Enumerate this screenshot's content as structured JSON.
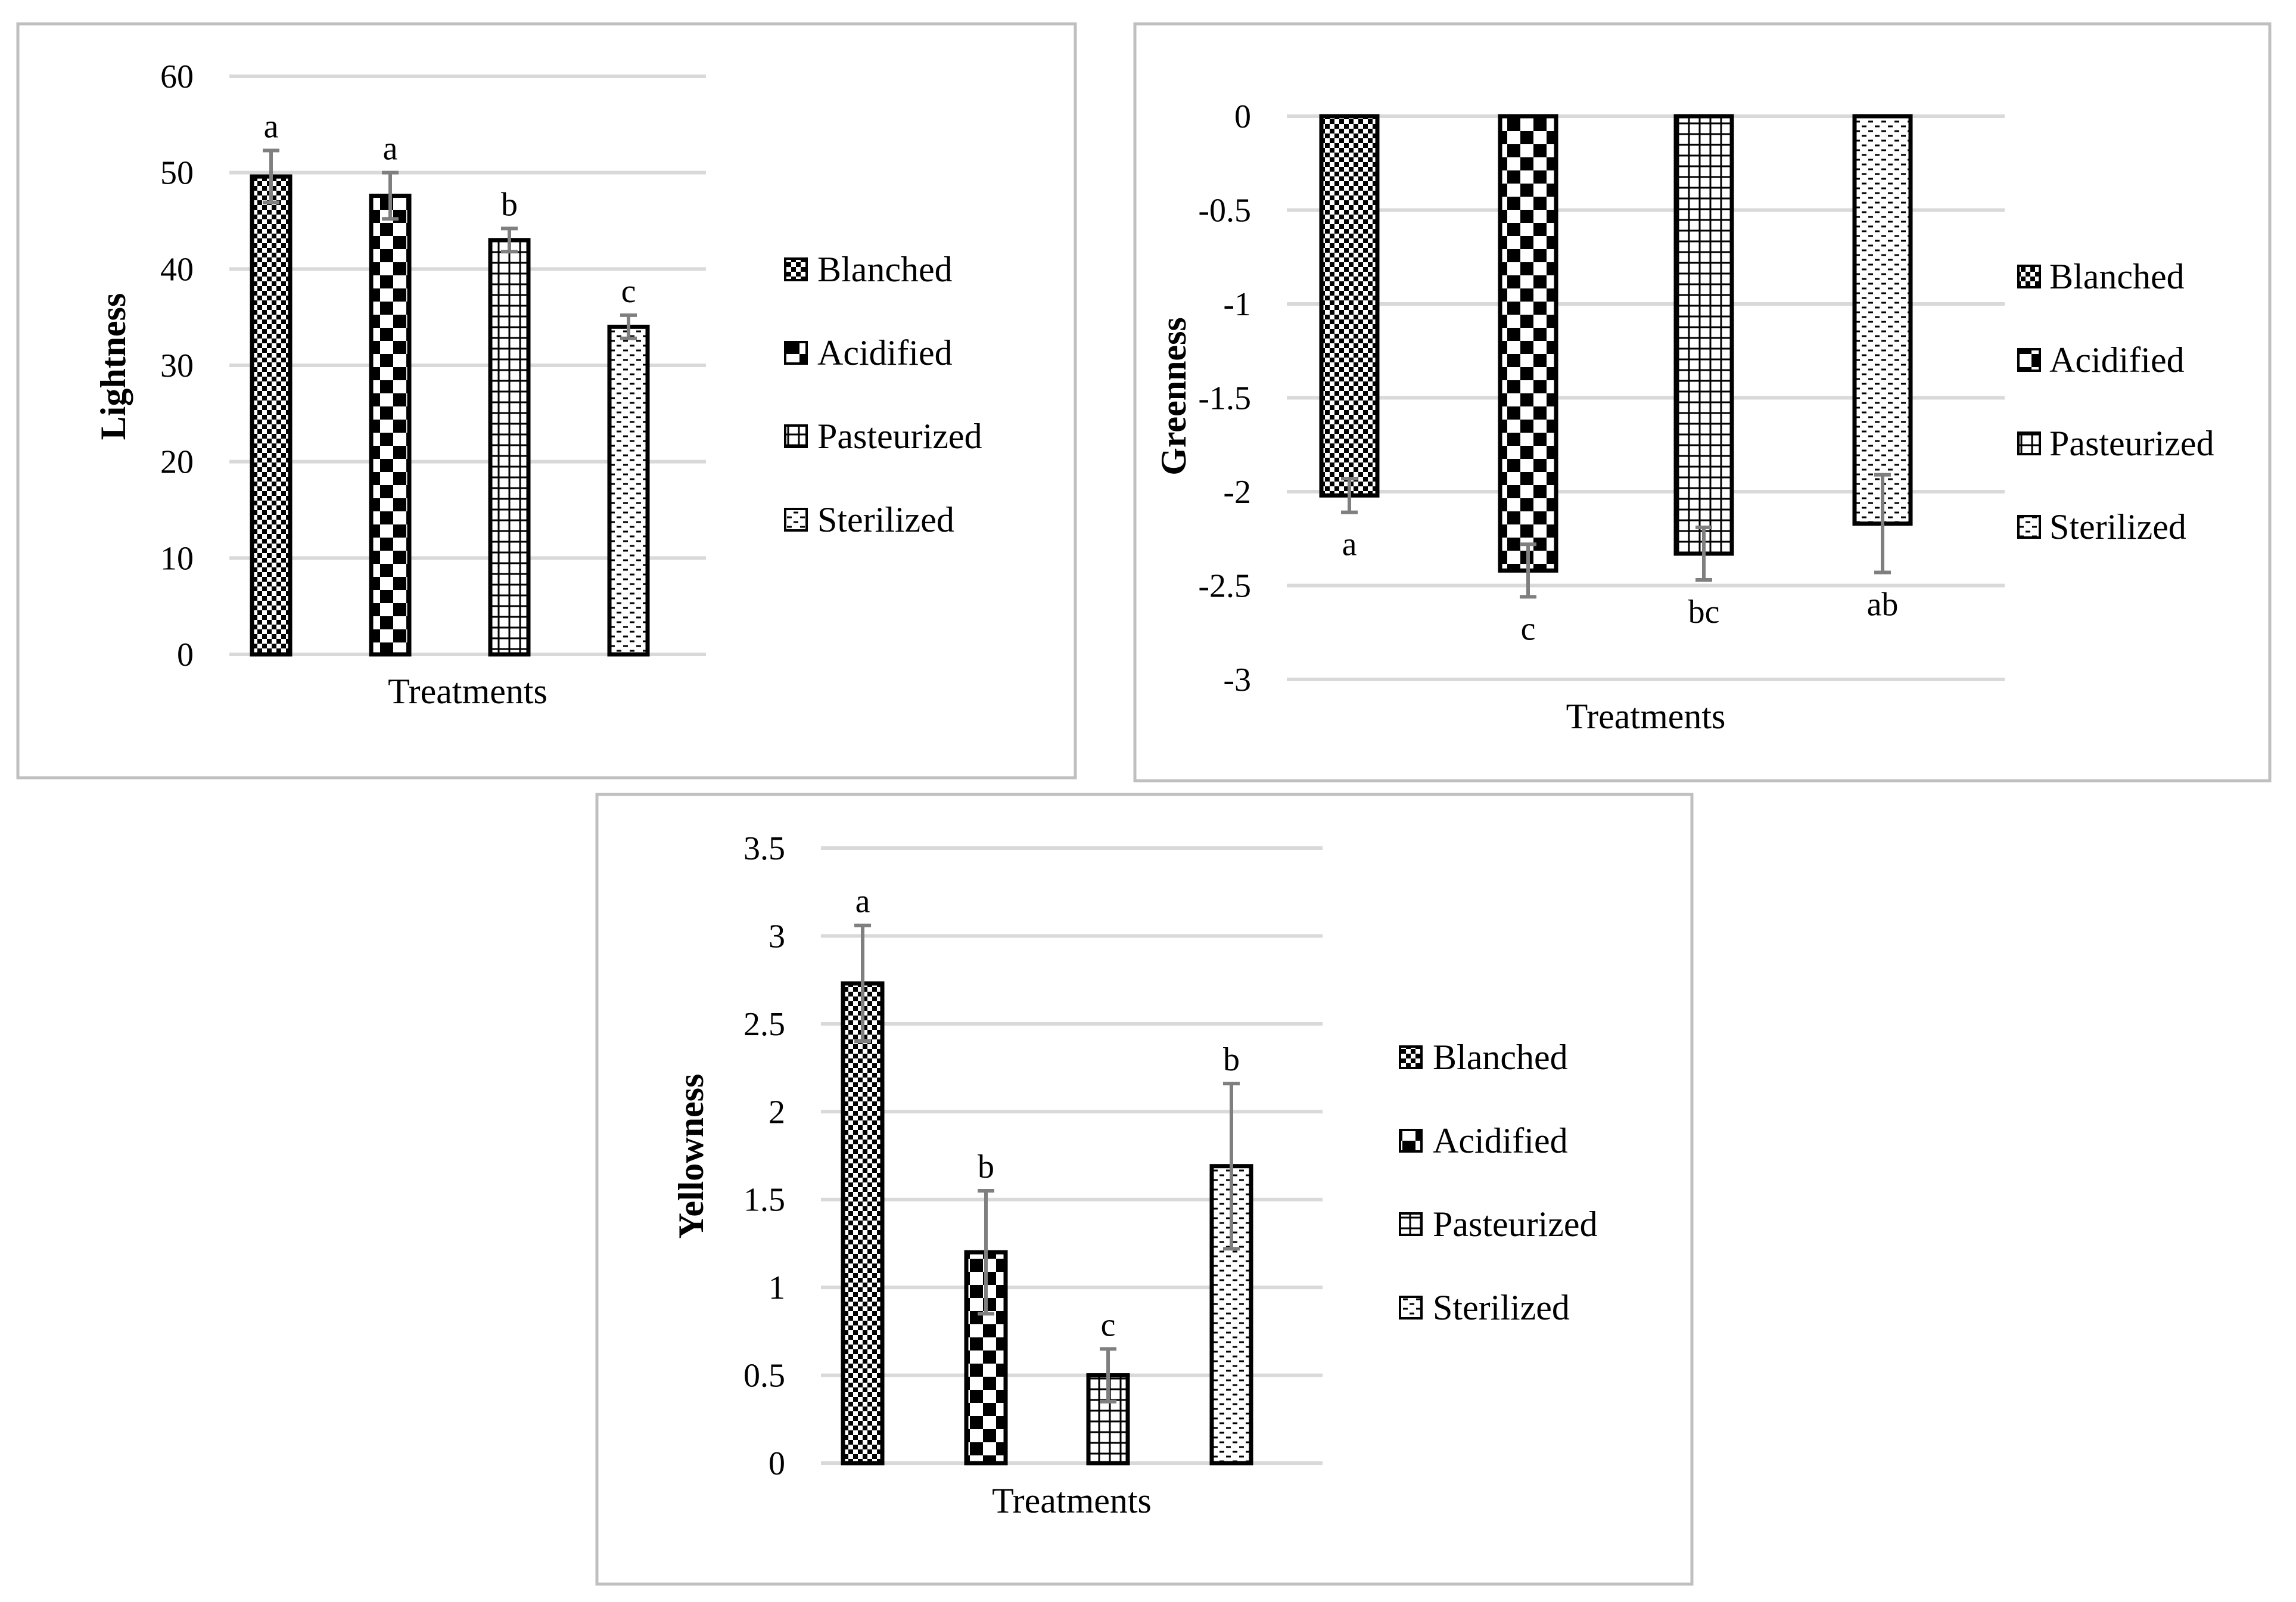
{
  "colors": {
    "frame": "#bfbfbf",
    "grid": "#d9d9d9",
    "bar_stroke": "#000000",
    "error_bar": "#7f7f7f"
  },
  "legend_items": [
    {
      "label": "Blanched",
      "pattern": "dots"
    },
    {
      "label": "Acidified",
      "pattern": "checker"
    },
    {
      "label": "Pasteurized",
      "pattern": "grid"
    },
    {
      "label": "Sterilized",
      "pattern": "dashes"
    }
  ],
  "chart_data": [
    {
      "type": "bar",
      "title": "",
      "xlabel": "Treatments",
      "ylabel": "Lightness",
      "ylim": [
        0,
        60
      ],
      "yticks": [
        0,
        10,
        20,
        30,
        40,
        50,
        60
      ],
      "ytick_labels": [
        "0",
        "10",
        "20",
        "30",
        "40",
        "50",
        "60"
      ],
      "grid": true,
      "legend_position": "right",
      "series": [
        {
          "name": "Blanched",
          "value": 49.6,
          "error": 2.7,
          "letter": "a"
        },
        {
          "name": "Acidified",
          "value": 47.6,
          "error": 2.4,
          "letter": "a"
        },
        {
          "name": "Pasteurized",
          "value": 43.0,
          "error": 1.2,
          "letter": "b"
        },
        {
          "name": "Sterilized",
          "value": 34.0,
          "error": 1.2,
          "letter": "c"
        }
      ]
    },
    {
      "type": "bar",
      "title": "",
      "xlabel": "Treatments",
      "ylabel": "Greenness",
      "ylim": [
        -3,
        0
      ],
      "yticks": [
        0,
        -0.5,
        -1,
        -1.5,
        -2,
        -2.5,
        -3
      ],
      "ytick_labels": [
        "0",
        "-0.5",
        "-1",
        "-1.5",
        "-2",
        "-2.5",
        "-3"
      ],
      "grid": true,
      "legend_position": "right",
      "series": [
        {
          "name": "Blanched",
          "value": -2.02,
          "error": 0.09,
          "letter": "a"
        },
        {
          "name": "Acidified",
          "value": -2.42,
          "error": 0.14,
          "letter": "c"
        },
        {
          "name": "Pasteurized",
          "value": -2.33,
          "error": 0.14,
          "letter": "bc"
        },
        {
          "name": "Sterilized",
          "value": -2.17,
          "error": 0.26,
          "letter": "ab"
        }
      ]
    },
    {
      "type": "bar",
      "title": "",
      "xlabel": "Treatments",
      "ylabel": "Yellowness",
      "ylim": [
        0,
        3.5
      ],
      "yticks": [
        0,
        0.5,
        1,
        1.5,
        2,
        2.5,
        3,
        3.5
      ],
      "ytick_labels": [
        "0",
        "0.5",
        "1",
        "1.5",
        "2",
        "2.5",
        "3",
        "3.5"
      ],
      "grid": true,
      "legend_position": "right",
      "series": [
        {
          "name": "Blanched",
          "value": 2.73,
          "error": 0.33,
          "letter": "a"
        },
        {
          "name": "Acidified",
          "value": 1.2,
          "error": 0.35,
          "letter": "b"
        },
        {
          "name": "Pasteurized",
          "value": 0.5,
          "error": 0.15,
          "letter": "c"
        },
        {
          "name": "Sterilized",
          "value": 1.69,
          "error": 0.47,
          "letter": "b"
        }
      ]
    }
  ]
}
